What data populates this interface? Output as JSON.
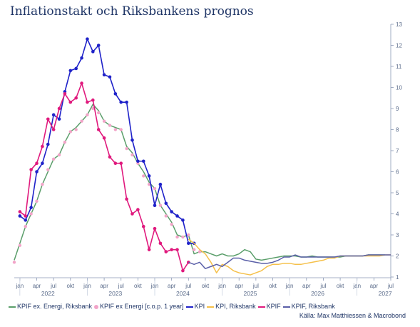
{
  "title": "Inflationstakt och Riksbankens prognos",
  "source": "Källa: Max Matthiessen & Macrobond",
  "chart_data": {
    "type": "line",
    "title": "Inflationstakt och Riksbankens prognos",
    "ylim": [
      1,
      13
    ],
    "y_ticks": [
      1,
      2,
      3,
      4,
      5,
      6,
      7,
      8,
      9,
      10,
      11,
      12,
      13
    ],
    "y_axis_side": "right",
    "x_axis": {
      "start": "2021-12",
      "end": "2027-07",
      "month_tick_labels": [
        {
          "month": "2022-01",
          "label": "jan"
        },
        {
          "month": "2022-04",
          "label": "apr"
        },
        {
          "month": "2022-07",
          "label": "jul"
        },
        {
          "month": "2022-10",
          "label": "okt"
        },
        {
          "month": "2023-01",
          "label": "jan"
        },
        {
          "month": "2023-04",
          "label": "apr"
        },
        {
          "month": "2023-07",
          "label": "jul"
        },
        {
          "month": "2023-10",
          "label": "okt"
        },
        {
          "month": "2024-01",
          "label": "jan"
        },
        {
          "month": "2024-04",
          "label": "apr"
        },
        {
          "month": "2024-07",
          "label": "jul"
        },
        {
          "month": "2024-10",
          "label": "okt"
        },
        {
          "month": "2025-01",
          "label": "jan"
        },
        {
          "month": "2025-04",
          "label": "apr"
        },
        {
          "month": "2025-07",
          "label": "jul"
        },
        {
          "month": "2025-10",
          "label": "okt"
        },
        {
          "month": "2026-01",
          "label": "jan"
        },
        {
          "month": "2026-04",
          "label": "apr"
        },
        {
          "month": "2026-07",
          "label": "jul"
        },
        {
          "month": "2026-10",
          "label": "okt"
        },
        {
          "month": "2027-01",
          "label": "jan"
        },
        {
          "month": "2027-04",
          "label": "apr"
        },
        {
          "month": "2027-07",
          "label": "jul"
        }
      ],
      "year_labels": [
        {
          "month": "2022-06",
          "label": "2022"
        },
        {
          "month": "2023-06",
          "label": "2023"
        },
        {
          "month": "2024-06",
          "label": "2024"
        },
        {
          "month": "2025-06",
          "label": "2025"
        },
        {
          "month": "2026-06",
          "label": "2026"
        },
        {
          "month": "2027-06",
          "label": "2027"
        }
      ]
    },
    "grid": false,
    "legend_position": "bottom",
    "series": [
      {
        "name": "KPIF ex. Energi, Riksbank",
        "color": "#5a9e6a",
        "style": "line",
        "start": "2021-12",
        "values": [
          1.8,
          2.6,
          3.4,
          4.0,
          4.6,
          5.4,
          6.0,
          6.6,
          6.8,
          7.4,
          7.9,
          8.1,
          8.4,
          8.7,
          9.2,
          8.9,
          8.4,
          8.2,
          8.1,
          8.0,
          7.2,
          6.9,
          6.4,
          6.0,
          5.5,
          5.2,
          4.4,
          4.0,
          3.6,
          3.0,
          2.9,
          3.0,
          2.1,
          2.2,
          2.2,
          2.1,
          2.0,
          2.1,
          2.0,
          2.0,
          2.1,
          2.3,
          2.2,
          1.85,
          1.8,
          1.85,
          1.9,
          1.95,
          2.0,
          2.0,
          2.0,
          1.95,
          1.95,
          2.0,
          1.95,
          1.95,
          1.95,
          1.95,
          1.95,
          2.0,
          2.0,
          2.0,
          2.0,
          2.05,
          2.05,
          2.05,
          2.05
        ]
      },
      {
        "name": "KPIF ex Energi [c.o.p. 1 year]",
        "color": "#f2a4c8",
        "style": "dots",
        "start": "2021-12",
        "values": [
          1.7,
          2.5,
          3.4,
          4.0,
          4.6,
          5.4,
          6.1,
          6.6,
          6.8,
          7.4,
          7.9,
          8.0,
          8.4,
          8.7,
          9.0,
          8.8,
          8.4,
          8.2,
          8.0,
          8.0,
          7.1,
          6.8,
          6.4,
          5.8,
          5.4,
          5.2,
          4.4,
          3.9,
          3.5,
          2.9,
          2.9,
          3.0,
          2.3,
          2.2
        ]
      },
      {
        "name": "KPI",
        "color": "#1f22c9",
        "style": "line+dots",
        "start": "2022-01",
        "values": [
          3.9,
          3.7,
          4.3,
          6.0,
          6.4,
          7.3,
          8.7,
          8.5,
          9.8,
          10.8,
          10.9,
          11.4,
          12.3,
          11.7,
          12.0,
          10.6,
          10.5,
          9.7,
          9.3,
          9.3,
          7.5,
          6.5,
          6.5,
          5.8,
          4.4,
          5.4,
          4.5,
          4.1,
          3.9,
          3.7,
          2.6,
          2.6
        ]
      },
      {
        "name": "KPI, Riksbank",
        "color": "#f5c04a",
        "style": "line",
        "start": "2024-07",
        "values": [
          2.8,
          2.6,
          2.3,
          2.1,
          1.7,
          1.2,
          1.6,
          1.5,
          1.3,
          1.2,
          1.15,
          1.1,
          1.2,
          1.3,
          1.5,
          1.6,
          1.6,
          1.65,
          1.65,
          1.6,
          1.6,
          1.65,
          1.7,
          1.75,
          1.8,
          1.9,
          1.9,
          2.0,
          2.0,
          2.0,
          2.0,
          2.0,
          2.0,
          2.0,
          2.0,
          2.05,
          2.05
        ]
      },
      {
        "name": "KPIF",
        "color": "#e0197d",
        "style": "line+dots",
        "start": "2022-01",
        "values": [
          4.1,
          3.9,
          6.1,
          6.4,
          7.2,
          8.5,
          8.0,
          9.0,
          9.7,
          9.3,
          9.5,
          10.2,
          9.3,
          9.4,
          8.0,
          7.6,
          6.7,
          6.4,
          6.4,
          4.7,
          4.0,
          4.2,
          3.4,
          2.3,
          3.3,
          2.6,
          2.2,
          2.3,
          2.3,
          1.3,
          1.7
        ]
      },
      {
        "name": "KPIF, Riksbank",
        "color": "#5a5fa8",
        "style": "line",
        "start": "2024-07",
        "values": [
          1.7,
          1.6,
          1.7,
          1.4,
          1.5,
          1.6,
          1.5,
          1.7,
          1.9,
          1.9,
          1.8,
          1.75,
          1.7,
          1.65,
          1.65,
          1.7,
          1.8,
          1.95,
          1.95,
          2.05,
          1.95,
          1.95,
          1.95,
          1.95,
          1.95,
          1.95,
          1.95,
          2.0,
          2.0,
          2.0,
          2.0,
          2.0,
          2.05,
          2.05,
          2.05,
          2.05,
          2.05
        ]
      }
    ]
  }
}
